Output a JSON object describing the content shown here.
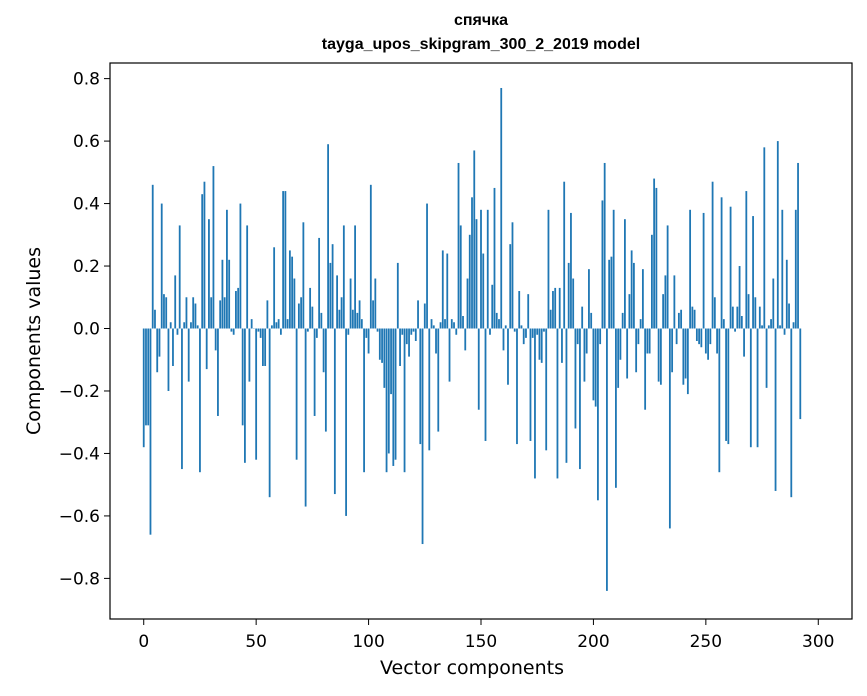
{
  "chart_data": {
    "type": "bar",
    "title": "спячка",
    "subtitle": "tayga_upos_skipgram_300_2_2019 model",
    "xlabel": "Vector components",
    "ylabel": "Components values",
    "xlim": [
      -15,
      315
    ],
    "ylim": [
      -0.93,
      0.85
    ],
    "xticks": [
      0,
      50,
      100,
      150,
      200,
      250,
      300
    ],
    "yticks": [
      -0.8,
      -0.6,
      -0.4,
      -0.2,
      0.0,
      0.2,
      0.4,
      0.6,
      0.8
    ],
    "ytick_labels": [
      "−0.8",
      "−0.6",
      "−0.4",
      "−0.2",
      "0.0",
      "0.2",
      "0.4",
      "0.6",
      "0.8"
    ],
    "grid": false,
    "bar_color": "#1f77b4",
    "values": [
      -0.38,
      -0.31,
      -0.31,
      -0.66,
      0.46,
      0.06,
      -0.14,
      -0.09,
      0.4,
      0.11,
      0.1,
      -0.2,
      0.02,
      -0.12,
      0.17,
      -0.02,
      0.33,
      -0.45,
      0.02,
      0.1,
      -0.17,
      0.02,
      0.1,
      0.08,
      0.01,
      -0.46,
      0.43,
      0.47,
      -0.13,
      0.35,
      0.1,
      0.52,
      -0.07,
      -0.28,
      0.09,
      0.22,
      0.1,
      0.38,
      0.22,
      -0.01,
      -0.02,
      0.12,
      0.13,
      0.4,
      -0.31,
      -0.43,
      0.33,
      -0.17,
      0.03,
      0.0,
      -0.42,
      -0.01,
      -0.03,
      -0.12,
      -0.12,
      0.09,
      -0.54,
      0.01,
      0.26,
      0.02,
      0.03,
      -0.02,
      0.44,
      0.44,
      0.03,
      0.25,
      0.23,
      0.16,
      -0.42,
      0.08,
      0.1,
      0.34,
      -0.57,
      -0.01,
      0.13,
      0.07,
      -0.28,
      -0.03,
      0.29,
      0.05,
      -0.14,
      -0.33,
      0.59,
      0.21,
      0.27,
      -0.53,
      0.17,
      0.06,
      0.1,
      0.33,
      -0.6,
      -0.02,
      0.16,
      0.06,
      0.33,
      0.05,
      0.09,
      0.03,
      -0.46,
      -0.03,
      -0.08,
      0.46,
      0.09,
      0.16,
      -0.01,
      -0.1,
      -0.11,
      -0.19,
      -0.46,
      -0.4,
      -0.21,
      -0.44,
      -0.42,
      0.21,
      -0.12,
      -0.02,
      -0.46,
      -0.05,
      -0.09,
      -0.02,
      -0.01,
      -0.04,
      0.09,
      -0.37,
      -0.69,
      0.08,
      0.4,
      -0.39,
      0.03,
      0.01,
      -0.08,
      -0.33,
      0.02,
      0.25,
      0.03,
      0.24,
      -0.17,
      0.03,
      0.02,
      -0.02,
      0.53,
      0.33,
      0.04,
      -0.07,
      0.16,
      0.3,
      0.42,
      0.57,
      0.35,
      -0.26,
      0.38,
      0.24,
      -0.36,
      0.38,
      -0.02,
      0.14,
      0.45,
      0.05,
      0.03,
      0.77,
      -0.07,
      0.01,
      -0.18,
      0.27,
      0.34,
      -0.01,
      -0.37,
      0.12,
      0.01,
      -0.05,
      -0.03,
      0.11,
      -0.36,
      -0.03,
      -0.48,
      -0.02,
      -0.1,
      -0.11,
      -0.01,
      -0.39,
      0.38,
      0.06,
      0.12,
      0.13,
      -0.48,
      0.13,
      -0.11,
      0.47,
      -0.43,
      0.21,
      0.37,
      0.16,
      -0.32,
      -0.05,
      -0.45,
      0.07,
      -0.17,
      -0.08,
      0.19,
      0.05,
      -0.23,
      -0.25,
      -0.55,
      -0.05,
      0.41,
      0.53,
      -0.84,
      0.22,
      0.23,
      0.38,
      -0.51,
      -0.19,
      -0.1,
      0.05,
      0.35,
      -0.16,
      0.11,
      0.25,
      0.21,
      -0.14,
      -0.05,
      0.03,
      0.19,
      -0.26,
      -0.08,
      -0.08,
      0.3,
      0.48,
      0.45,
      -0.17,
      -0.18,
      0.11,
      0.17,
      0.33,
      -0.64,
      -0.14,
      0.17,
      -0.05,
      0.05,
      0.06,
      -0.18,
      -0.16,
      -0.21,
      0.38,
      0.07,
      0.06,
      -0.04,
      -0.05,
      -0.06,
      0.37,
      -0.08,
      -0.1,
      -0.05,
      0.47,
      0.1,
      -0.08,
      -0.46,
      0.42,
      0.03,
      -0.36,
      -0.37,
      0.39,
      0.07,
      -0.01,
      0.07,
      0.2,
      0.04,
      -0.09,
      0.44,
      0.11,
      -0.38,
      0.36,
      0.1,
      -0.38,
      0.07,
      0.01,
      0.58,
      -0.19,
      0.01,
      0.03,
      0.16,
      -0.52,
      0.6,
      0.01,
      0.38,
      -0.02,
      0.22,
      0.08,
      -0.54,
      0.02,
      0.38,
      0.53,
      -0.29
    ]
  }
}
